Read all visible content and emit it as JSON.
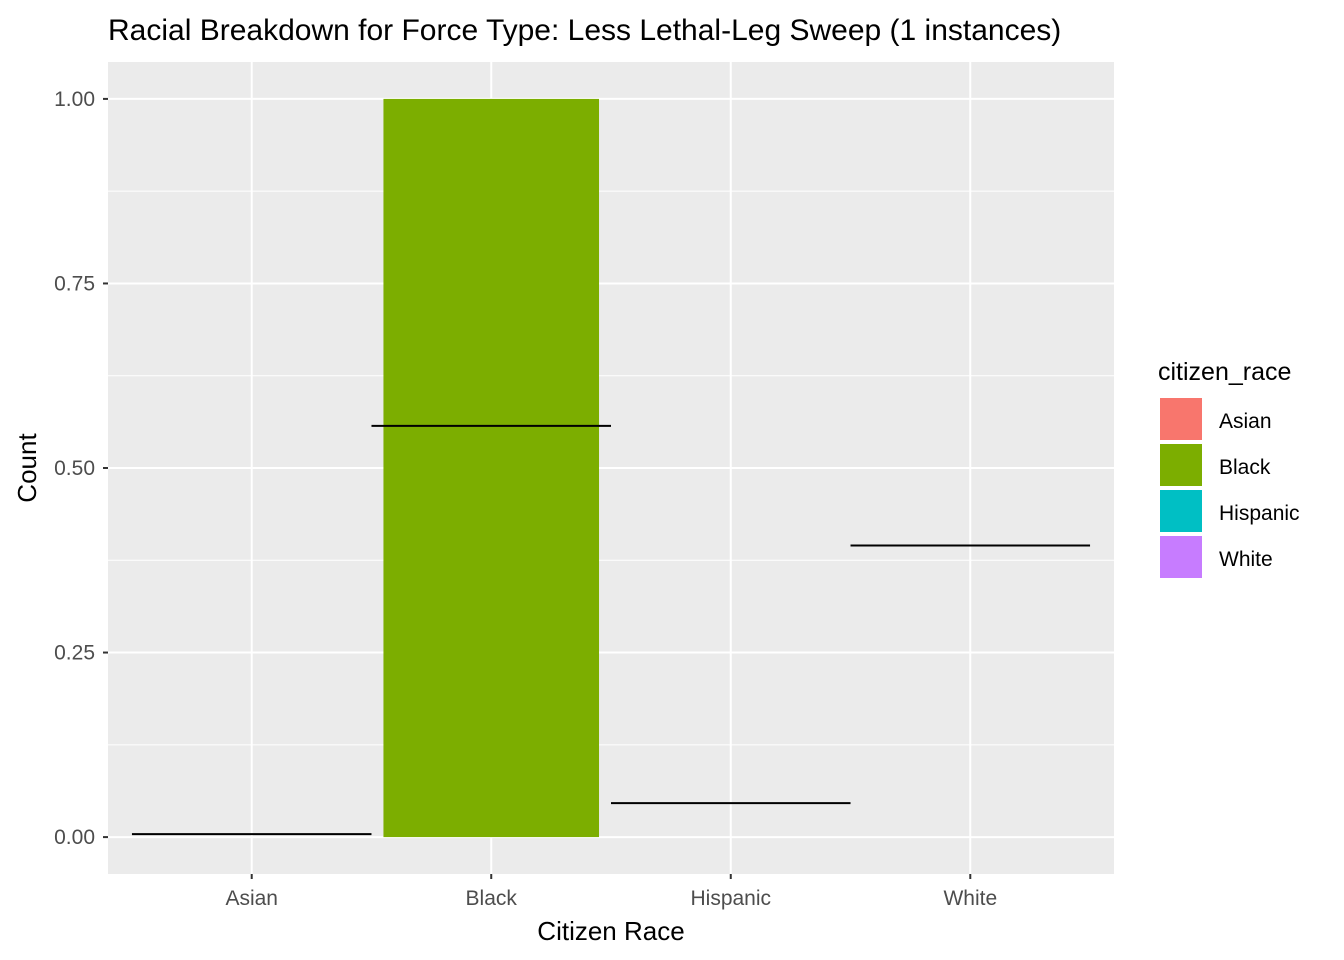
{
  "chart_data": {
    "type": "bar",
    "title": "Racial Breakdown for Force Type: Less Lethal-Leg Sweep (1 instances)",
    "xlabel": "Citizen Race",
    "ylabel": "Count",
    "categories": [
      "Asian",
      "Black",
      "Hispanic",
      "White"
    ],
    "values": [
      0,
      1,
      0,
      0
    ],
    "ylim": [
      -0.05,
      1.05
    ],
    "yticks": [
      0,
      0.25,
      0.5,
      0.75,
      1.0
    ],
    "ytick_labels": [
      "0.00",
      "0.25",
      "0.50",
      "0.75",
      "1.00"
    ],
    "reference_lines": [
      {
        "category": "Asian",
        "value": 0.004
      },
      {
        "category": "Black",
        "value": 0.557
      },
      {
        "category": "Hispanic",
        "value": 0.046
      },
      {
        "category": "White",
        "value": 0.395
      }
    ],
    "grid": true,
    "legend": {
      "title": "citizen_race",
      "position": "right",
      "entries": [
        {
          "label": "Asian",
          "color": "#F8766D"
        },
        {
          "label": "Black",
          "color": "#7CAE00"
        },
        {
          "label": "Hispanic",
          "color": "#00BFC4"
        },
        {
          "label": "White",
          "color": "#C77CFF"
        }
      ]
    },
    "colors": {
      "panel_background": "#EBEBEB",
      "grid_line": "#FFFFFF",
      "reference_line": "#000000"
    }
  }
}
